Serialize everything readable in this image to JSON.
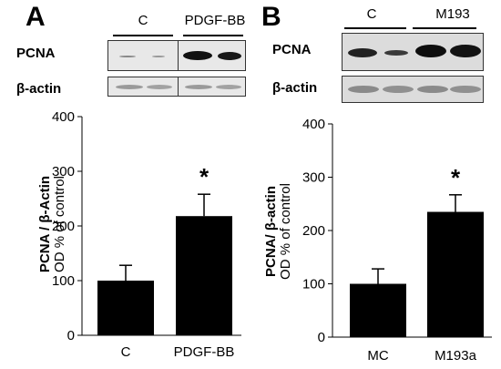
{
  "panels": [
    {
      "letter": "A",
      "lanes": [
        "C",
        "PDGF-BB"
      ],
      "blot_rows": [
        "PCNA",
        "β-actin"
      ],
      "ylabel_line1": "PCNA / β-Actin",
      "ylabel_line2": "OD % of control"
    },
    {
      "letter": "B",
      "lanes": [
        "C",
        "M193"
      ],
      "blot_rows": [
        "PCNA",
        "β-actin"
      ],
      "ylabel_line1": "PCNA/ β-actin",
      "ylabel_line2": "OD % of control"
    }
  ],
  "chart_data": [
    {
      "type": "bar",
      "categories": [
        "C",
        "PDGF-BB"
      ],
      "values": [
        100,
        218
      ],
      "error": [
        28,
        40
      ],
      "significance": [
        "",
        "*"
      ],
      "ylim": [
        0,
        400
      ],
      "yticks": [
        0,
        100,
        200,
        300,
        400
      ],
      "ylabel": "PCNA / β-Actin OD % of control",
      "color": "#000000"
    },
    {
      "type": "bar",
      "categories": [
        "MC",
        "M193a"
      ],
      "values": [
        100,
        235
      ],
      "error": [
        28,
        32
      ],
      "significance": [
        "",
        "*"
      ],
      "ylim": [
        0,
        400
      ],
      "yticks": [
        0,
        100,
        200,
        300,
        400
      ],
      "ylabel": "PCNA/ β-actin OD % of control",
      "color": "#000000"
    }
  ]
}
